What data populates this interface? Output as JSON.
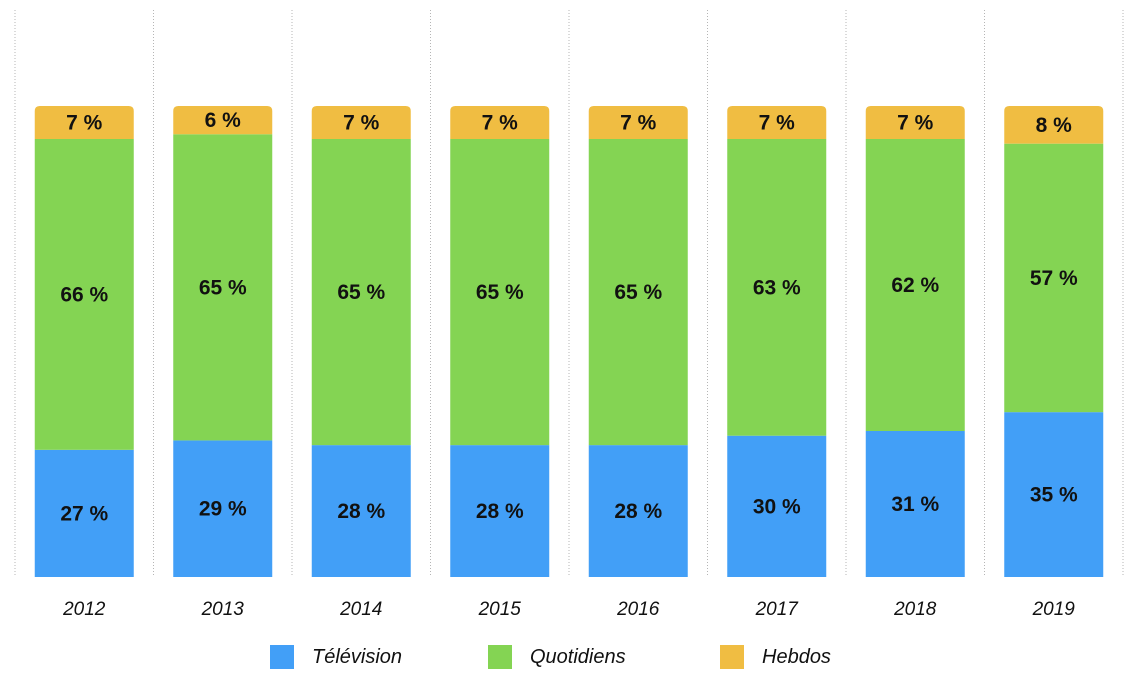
{
  "chart_data": {
    "type": "bar",
    "stacked": true,
    "normalized": true,
    "categories": [
      "2012",
      "2013",
      "2014",
      "2015",
      "2016",
      "2017",
      "2018",
      "2019"
    ],
    "series": [
      {
        "name": "Télévision",
        "color": "#429ff7",
        "values": [
          27,
          29,
          28,
          28,
          28,
          30,
          31,
          35
        ],
        "labels": [
          "27 %",
          "29 %",
          "28 %",
          "28 %",
          "28 %",
          "30 %",
          "31 %",
          "35 %"
        ]
      },
      {
        "name": "Quotidiens",
        "color": "#84d453",
        "values": [
          66,
          65,
          65,
          65,
          65,
          63,
          62,
          57
        ],
        "labels": [
          "66 %",
          "65 %",
          "65 %",
          "65 %",
          "65 %",
          "63 %",
          "62 %",
          "57 %"
        ]
      },
      {
        "name": "Hebdos",
        "color": "#f0bd42",
        "values": [
          7,
          6,
          7,
          7,
          7,
          7,
          7,
          8
        ],
        "labels": [
          "7 %",
          "6 %",
          "7 %",
          "7 %",
          "7 %",
          "7 %",
          "7 %",
          "8 %"
        ]
      }
    ],
    "legend_position": "bottom",
    "grid": "vertical dotted separators"
  }
}
